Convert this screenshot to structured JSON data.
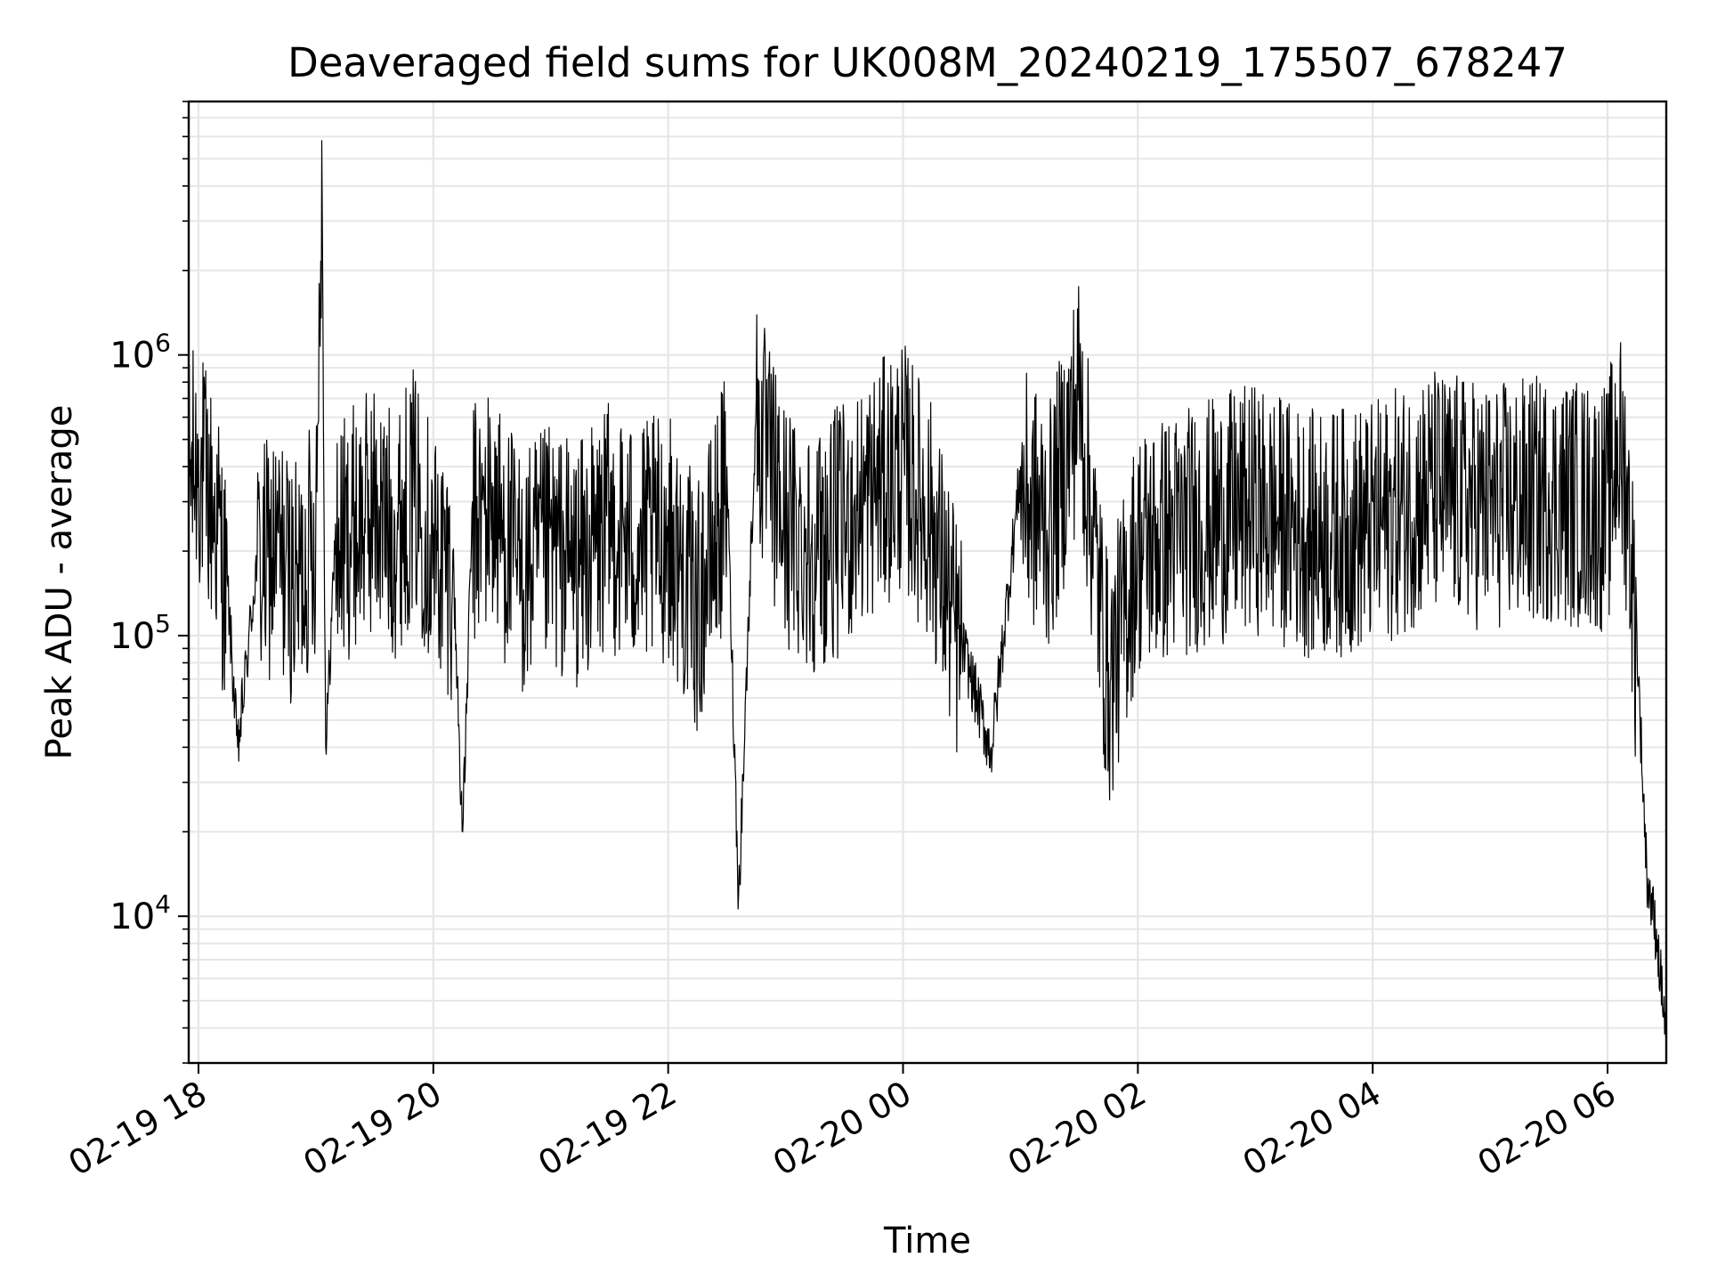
{
  "chart_data": {
    "type": "line",
    "title": "Deaveraged field sums for UK008M_20240219_175507_678247",
    "xlabel": "Time",
    "ylabel": "Peak ADU - average",
    "yscale": "log",
    "ylim": [
      3000,
      8000000
    ],
    "xlim": [
      "2024-02-19 17:55",
      "2024-02-20 06:30"
    ],
    "grid": true,
    "x_ticks": [
      {
        "at": "2024-02-19 18:00",
        "label": "02-19 18"
      },
      {
        "at": "2024-02-19 20:00",
        "label": "02-19 20"
      },
      {
        "at": "2024-02-19 22:00",
        "label": "02-19 22"
      },
      {
        "at": "2024-02-20 00:00",
        "label": "02-20 00"
      },
      {
        "at": "2024-02-20 02:00",
        "label": "02-20 02"
      },
      {
        "at": "2024-02-20 04:00",
        "label": "02-20 04"
      },
      {
        "at": "2024-02-20 06:00",
        "label": "02-20 06"
      }
    ],
    "y_ticks": [
      {
        "value": 10000,
        "base": "10",
        "exp": "4"
      },
      {
        "value": 100000,
        "base": "10",
        "exp": "5"
      },
      {
        "value": 1000000,
        "base": "10",
        "exp": "6"
      }
    ],
    "series": [
      {
        "color": "#000000",
        "x": [
          "2024-02-19 17:55",
          "2024-02-19 18:00",
          "2024-02-19 18:10",
          "2024-02-19 18:15",
          "2024-02-19 18:20",
          "2024-02-19 18:30",
          "2024-02-19 18:40",
          "2024-02-19 18:50",
          "2024-02-19 19:00",
          "2024-02-19 19:03",
          "2024-02-19 19:05",
          "2024-02-19 19:10",
          "2024-02-19 19:20",
          "2024-02-19 19:30",
          "2024-02-19 19:40",
          "2024-02-19 19:50",
          "2024-02-19 20:00",
          "2024-02-19 20:10",
          "2024-02-19 20:15",
          "2024-02-19 20:20",
          "2024-02-19 20:30",
          "2024-02-19 20:45",
          "2024-02-19 21:00",
          "2024-02-19 21:15",
          "2024-02-19 21:30",
          "2024-02-19 21:45",
          "2024-02-19 22:00",
          "2024-02-19 22:15",
          "2024-02-19 22:30",
          "2024-02-19 22:36",
          "2024-02-19 22:45",
          "2024-02-19 23:00",
          "2024-02-19 23:15",
          "2024-02-19 23:30",
          "2024-02-19 23:45",
          "2024-02-20 00:00",
          "2024-02-20 00:15",
          "2024-02-20 00:30",
          "2024-02-20 00:45",
          "2024-02-20 01:00",
          "2024-02-20 01:15",
          "2024-02-20 01:30",
          "2024-02-20 01:45",
          "2024-02-20 02:00",
          "2024-02-20 02:30",
          "2024-02-20 03:00",
          "2024-02-20 03:30",
          "2024-02-20 04:00",
          "2024-02-20 04:30",
          "2024-02-20 05:00",
          "2024-02-20 05:30",
          "2024-02-20 06:00",
          "2024-02-20 06:05",
          "2024-02-20 06:10",
          "2024-02-20 06:15",
          "2024-02-20 06:20",
          "2024-02-20 06:25",
          "2024-02-20 06:30"
        ],
        "y": [
          450000,
          500000,
          300000,
          150000,
          40000,
          200000,
          250000,
          180000,
          300000,
          5800000,
          40000,
          250000,
          300000,
          350000,
          280000,
          400000,
          250000,
          200000,
          20000,
          300000,
          350000,
          200000,
          250000,
          220000,
          300000,
          250000,
          280000,
          150000,
          400000,
          12000,
          700000,
          300000,
          250000,
          300000,
          400000,
          500000,
          300000,
          100000,
          40000,
          400000,
          300000,
          900000,
          80000,
          250000,
          300000,
          350000,
          280000,
          300000,
          400000,
          350000,
          380000,
          350000,
          600000,
          400000,
          100000,
          15000,
          9000,
          4000
        ]
      }
    ]
  }
}
